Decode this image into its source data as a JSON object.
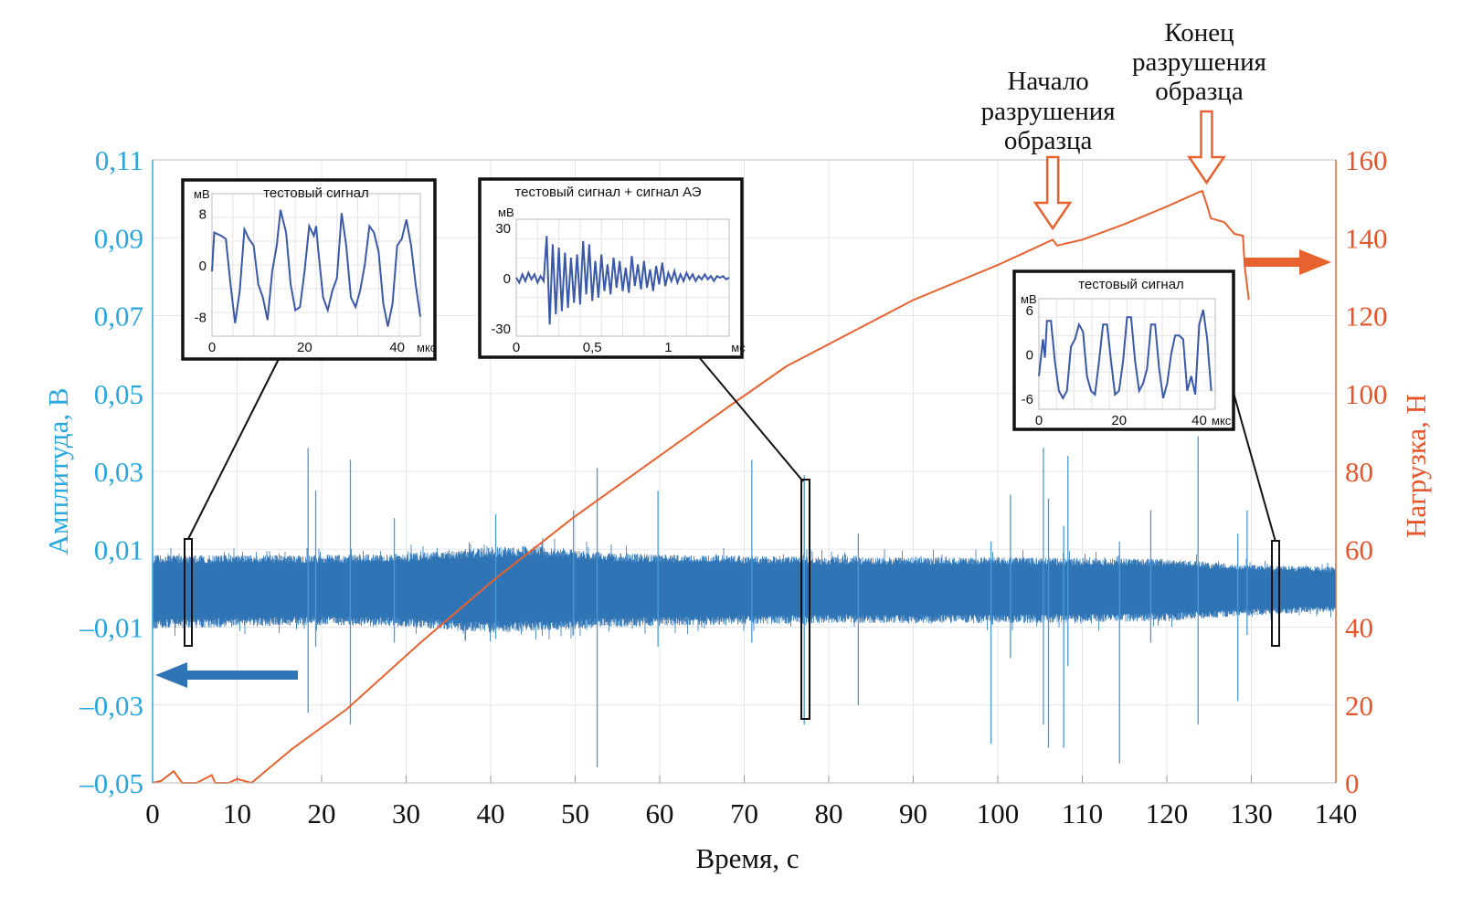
{
  "chart_data": {
    "type": "line",
    "xlabel": "Время, с",
    "ylabel_left": "Амплитуда, В",
    "ylabel_right": "Нагрузка, Н",
    "xlim": [
      0,
      140
    ],
    "ylim_left": [
      -0.05,
      0.11
    ],
    "ylim_right": [
      0,
      160
    ],
    "x_ticks": [
      "0",
      "10",
      "20",
      "30",
      "40",
      "50",
      "60",
      "70",
      "80",
      "90",
      "100",
      "110",
      "120",
      "130",
      "140"
    ],
    "y_left_ticks": [
      "–0,05",
      "–0,03",
      "–0,01",
      "0,01",
      "0,03",
      "0,05",
      "0,07",
      "0,09",
      "0,11"
    ],
    "y_right_ticks": [
      "0",
      "20",
      "40",
      "60",
      "80",
      "100",
      "120",
      "140",
      "160"
    ],
    "grid": true,
    "colors": {
      "amplitude": "#2f74b5",
      "load": "#e8622f",
      "left_axis": "#2aa7df",
      "right_axis": "#e8542a",
      "inset_line": "#3a58a8"
    },
    "series": [
      {
        "axis": "left",
        "kind": "amplitude-envelope",
        "envelope": [
          [
            0,
            0.0085,
            -0.0105
          ],
          [
            10,
            0.0085,
            -0.01
          ],
          [
            20,
            0.0085,
            -0.0095
          ],
          [
            30,
            0.009,
            -0.01
          ],
          [
            40,
            0.0105,
            -0.0115
          ],
          [
            45,
            0.011,
            -0.011
          ],
          [
            55,
            0.009,
            -0.01
          ],
          [
            65,
            0.0085,
            -0.0095
          ],
          [
            80,
            0.008,
            -0.009
          ],
          [
            100,
            0.008,
            -0.009
          ],
          [
            120,
            0.0075,
            -0.0085
          ],
          [
            130,
            0.006,
            -0.007
          ],
          [
            140,
            0.0055,
            -0.006
          ]
        ],
        "spikes": [
          [
            18.4,
            0.036,
            -0.032
          ],
          [
            19.3,
            0.025,
            -0.015
          ],
          [
            23.4,
            0.033,
            -0.035
          ],
          [
            28.6,
            0.018,
            -0.014
          ],
          [
            40.6,
            0.019,
            -0.013
          ],
          [
            49.8,
            0.02,
            -0.012
          ],
          [
            52.6,
            0.031,
            -0.046
          ],
          [
            59.8,
            0.025,
            -0.015
          ],
          [
            70.9,
            0.033,
            -0.014
          ],
          [
            77.1,
            0.029,
            -0.035
          ],
          [
            83.5,
            0.014,
            -0.03
          ],
          [
            99.2,
            0.012,
            -0.04
          ],
          [
            101.5,
            0.024,
            -0.018
          ],
          [
            105.4,
            0.036,
            -0.035
          ],
          [
            106.0,
            0.023,
            -0.041
          ],
          [
            107.8,
            0.016,
            -0.041
          ],
          [
            108.3,
            0.034,
            -0.02
          ],
          [
            114.4,
            0.012,
            -0.045
          ],
          [
            118.1,
            0.02,
            -0.014
          ],
          [
            123.7,
            0.039,
            -0.035
          ],
          [
            128.4,
            0.014,
            -0.029
          ],
          [
            129.5,
            0.02,
            -0.012
          ]
        ]
      },
      {
        "axis": "right",
        "kind": "load",
        "points": [
          [
            0,
            0
          ],
          [
            1,
            0.5
          ],
          [
            2.5,
            3
          ],
          [
            3.5,
            0
          ],
          [
            5.2,
            0
          ],
          [
            7,
            2
          ],
          [
            7.4,
            0
          ],
          [
            9,
            0
          ],
          [
            10,
            1
          ],
          [
            11.7,
            0
          ],
          [
            16.5,
            8.7
          ],
          [
            23,
            19
          ],
          [
            31.7,
            36
          ],
          [
            40.3,
            52
          ],
          [
            49.7,
            68
          ],
          [
            60,
            84
          ],
          [
            68.4,
            97
          ],
          [
            75,
            107
          ],
          [
            90,
            124
          ],
          [
            100,
            133
          ],
          [
            105,
            138
          ],
          [
            106.5,
            139.5
          ],
          [
            107,
            138
          ],
          [
            110,
            139.5
          ],
          [
            115,
            143.5
          ],
          [
            120,
            148
          ],
          [
            123.6,
            151.5
          ],
          [
            124.2,
            152
          ],
          [
            124.8,
            148
          ],
          [
            125.2,
            145
          ],
          [
            126.8,
            144
          ],
          [
            128,
            141
          ],
          [
            129,
            140.5
          ],
          [
            129.2,
            133
          ],
          [
            129.7,
            124
          ]
        ]
      }
    ],
    "annotations": [
      {
        "text": [
          "Начало",
          "разрушения",
          "образца"
        ],
        "t": 106.5
      },
      {
        "text": [
          "Конец",
          "разрушения",
          "образца"
        ],
        "t": 124.7
      }
    ],
    "insets": [
      {
        "title": "тестовый сигнал",
        "unit_y": "мВ",
        "unit_x": "мкс",
        "x_ticks": [
          "0",
          "20",
          "40"
        ],
        "y_ticks": [
          "8",
          "0",
          "-8"
        ],
        "xlim": [
          0,
          45
        ],
        "ylim": [
          -11,
          11
        ],
        "y_tick_values": [
          8,
          0,
          -8
        ],
        "x_tick_values": [
          0,
          20,
          40
        ],
        "marker_t": 4.3,
        "x": [
          0,
          0.5,
          2,
          3,
          4,
          5,
          6,
          7,
          8,
          9,
          10,
          11,
          12,
          13,
          14,
          14.8,
          16,
          17,
          18,
          19,
          20,
          21,
          22,
          22.5,
          23,
          24,
          25,
          26,
          27,
          28,
          29,
          30,
          31,
          32,
          33,
          34,
          35,
          36,
          37,
          38,
          39,
          40,
          41,
          42,
          43,
          44,
          45
        ],
        "y": [
          -1,
          5,
          4.5,
          4,
          -3,
          -9,
          -4,
          5.5,
          4,
          3,
          -3,
          -5,
          -8.5,
          -1,
          3,
          8.5,
          5,
          -3,
          -7,
          -6.5,
          -1,
          6,
          4.5,
          6,
          2,
          -5,
          -7,
          -4,
          -2,
          8,
          3,
          -5,
          -6.5,
          -4,
          0,
          6,
          5,
          2,
          -6,
          -9.5,
          -6,
          3,
          4,
          7,
          3,
          -3,
          -8
        ]
      },
      {
        "title": "тестовый сигнал + сигнал АЭ",
        "unit_y": "мВ",
        "unit_x": "мс",
        "x_ticks": [
          "0",
          "0,5",
          "1"
        ],
        "y_ticks": [
          "30",
          "0",
          "-30"
        ],
        "xlim": [
          0,
          1.4
        ],
        "ylim": [
          -35,
          35
        ],
        "y_tick_values": [
          30,
          0,
          -30
        ],
        "x_tick_values": [
          0,
          0.5,
          1
        ],
        "marker_t": 77.5,
        "step": 0.02,
        "y": [
          0,
          -3,
          2,
          -2,
          3,
          -1,
          2,
          -3,
          1,
          -2,
          25,
          -28,
          20,
          -22,
          18,
          -20,
          15,
          -18,
          12,
          -15,
          14,
          -16,
          22,
          -10,
          20,
          -14,
          10,
          -12,
          14,
          -8,
          8,
          -10,
          12,
          -6,
          10,
          -8,
          6,
          -9,
          13,
          -5,
          8,
          -7,
          10,
          -6,
          5,
          -8,
          7,
          -4,
          9,
          -5,
          3,
          -2,
          4,
          -3,
          2,
          -2,
          3,
          -1,
          2,
          -2,
          1,
          -1,
          2,
          -1,
          1,
          -2,
          1,
          0,
          1,
          -1,
          0
        ]
      },
      {
        "title": "тестовый сигнал",
        "unit_y": "мВ",
        "unit_x": "мкс",
        "x_ticks": [
          "0",
          "20",
          "40"
        ],
        "y_ticks": [
          "6",
          "0",
          "-6"
        ],
        "xlim": [
          0,
          44
        ],
        "ylim": [
          -7.5,
          7.5
        ],
        "y_tick_values": [
          6,
          0,
          -6
        ],
        "x_tick_values": [
          0,
          20,
          40
        ],
        "marker_t": 132.9,
        "x": [
          0,
          1,
          1.5,
          2,
          3,
          4,
          5,
          6,
          7,
          8,
          9,
          10,
          11,
          12,
          13,
          14,
          15,
          16,
          17,
          18,
          19,
          20,
          21,
          22,
          23,
          24,
          25,
          26,
          27,
          28,
          29,
          30,
          31,
          32,
          33,
          34,
          35,
          36,
          37,
          38,
          39,
          40,
          41,
          42,
          43
        ],
        "y": [
          -3,
          2,
          -0.5,
          4.5,
          4.5,
          -1,
          -5,
          -6,
          -5,
          1,
          2,
          4,
          3,
          -3,
          -5,
          -5.5,
          -1,
          4,
          4,
          -1,
          -5.5,
          -5,
          -1,
          5,
          5,
          -1,
          -5,
          -4,
          -2,
          4,
          4,
          -2,
          -6,
          -4,
          0,
          2.5,
          2.5,
          2,
          -5,
          -3,
          -5.5,
          4,
          6,
          2,
          -5
        ]
      }
    ]
  }
}
